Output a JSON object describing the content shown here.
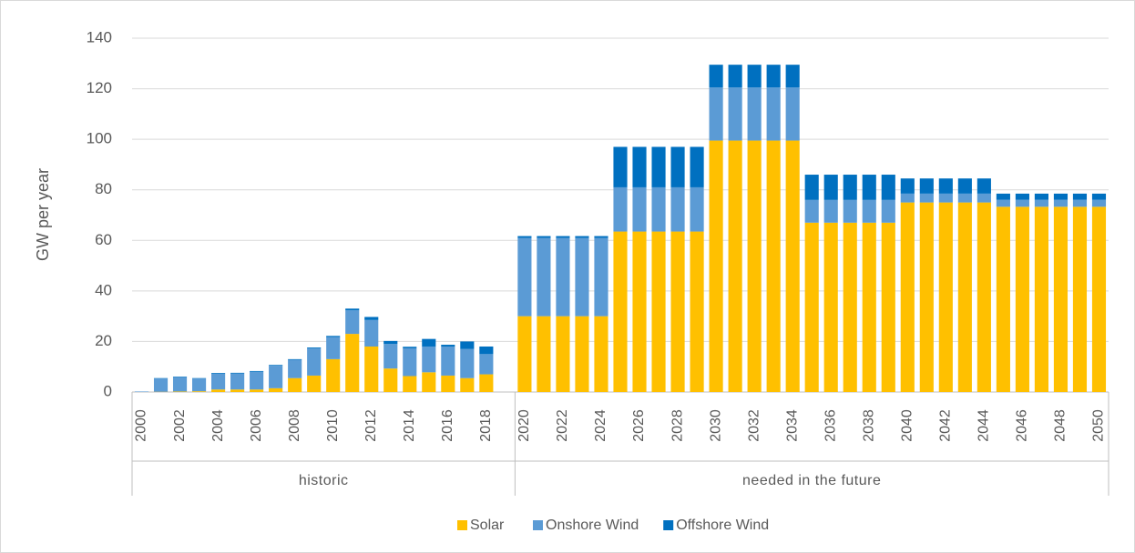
{
  "chart_data": {
    "type": "stacked_bar",
    "ylabel": "GW per year",
    "groups": [
      {
        "label": "historic",
        "categories": [
          "2000",
          null,
          "2002",
          null,
          "2004",
          null,
          "2006",
          null,
          "2008",
          null,
          "2010",
          null,
          "2012",
          null,
          "2014",
          null,
          "2016",
          null,
          "2018",
          null
        ]
      },
      {
        "label": "needed in the future",
        "categories": [
          "2020",
          null,
          "2022",
          null,
          "2024",
          null,
          "2026",
          null,
          "2028",
          null,
          "2030",
          null,
          "2032",
          null,
          "2034",
          null,
          "2036",
          null,
          "2038",
          null,
          "2040",
          null,
          "2042",
          null,
          "2044",
          null,
          "2046",
          null,
          "2048",
          null,
          "2050"
        ]
      }
    ],
    "series": [
      {
        "name": "Solar",
        "color": "#ffc000",
        "values": [
          0,
          0.1,
          0.2,
          0.3,
          1,
          1,
          1,
          1.5,
          5.5,
          6.5,
          13,
          23,
          18,
          9.3,
          6.3,
          7.8,
          6.5,
          5.5,
          7,
          null,
          30,
          30,
          30,
          30,
          30,
          63.5,
          63.5,
          63.5,
          63.5,
          63.5,
          99.5,
          99.5,
          99.5,
          99.5,
          99.5,
          67,
          67,
          67,
          67,
          67,
          75,
          75,
          75,
          75,
          75,
          73.3,
          73.3,
          73.3,
          73.3,
          73.3,
          73.3
        ]
      },
      {
        "name": "Onshore Wind",
        "color": "#5b9bd5",
        "values": [
          0.2,
          5.2,
          5.7,
          5,
          6.2,
          6.3,
          7,
          8.9,
          7.2,
          10.7,
          8.7,
          9.3,
          10.5,
          9.7,
          11,
          10.2,
          11.5,
          11.5,
          8,
          null,
          31,
          31,
          31,
          31,
          31,
          17.5,
          17.5,
          17.5,
          17.5,
          17.5,
          21,
          21,
          21,
          21,
          21,
          9,
          9,
          9,
          9,
          9,
          3.5,
          3.5,
          3.5,
          3.5,
          3.5,
          2.8,
          2.8,
          2.8,
          2.8,
          2.8,
          2.8
        ]
      },
      {
        "name": "Offshore Wind",
        "color": "#0070c0",
        "values": [
          0,
          0.2,
          0.2,
          0.2,
          0.3,
          0.3,
          0.3,
          0.3,
          0.3,
          0.4,
          0.5,
          0.7,
          1.2,
          1.2,
          0.6,
          3,
          0.7,
          3,
          3,
          null,
          0.7,
          0.7,
          0.7,
          0.7,
          0.7,
          16,
          16,
          16,
          16,
          16,
          9,
          9,
          9,
          9,
          9,
          10,
          10,
          10,
          10,
          10,
          6,
          6,
          6,
          6,
          6,
          2.4,
          2.4,
          2.4,
          2.4,
          2.4,
          2.4
        ]
      }
    ],
    "ylim": [
      0,
      140
    ],
    "yticks": [
      0,
      20,
      40,
      60,
      80,
      100,
      120,
      140
    ],
    "grid": true,
    "legend": "bottom"
  }
}
